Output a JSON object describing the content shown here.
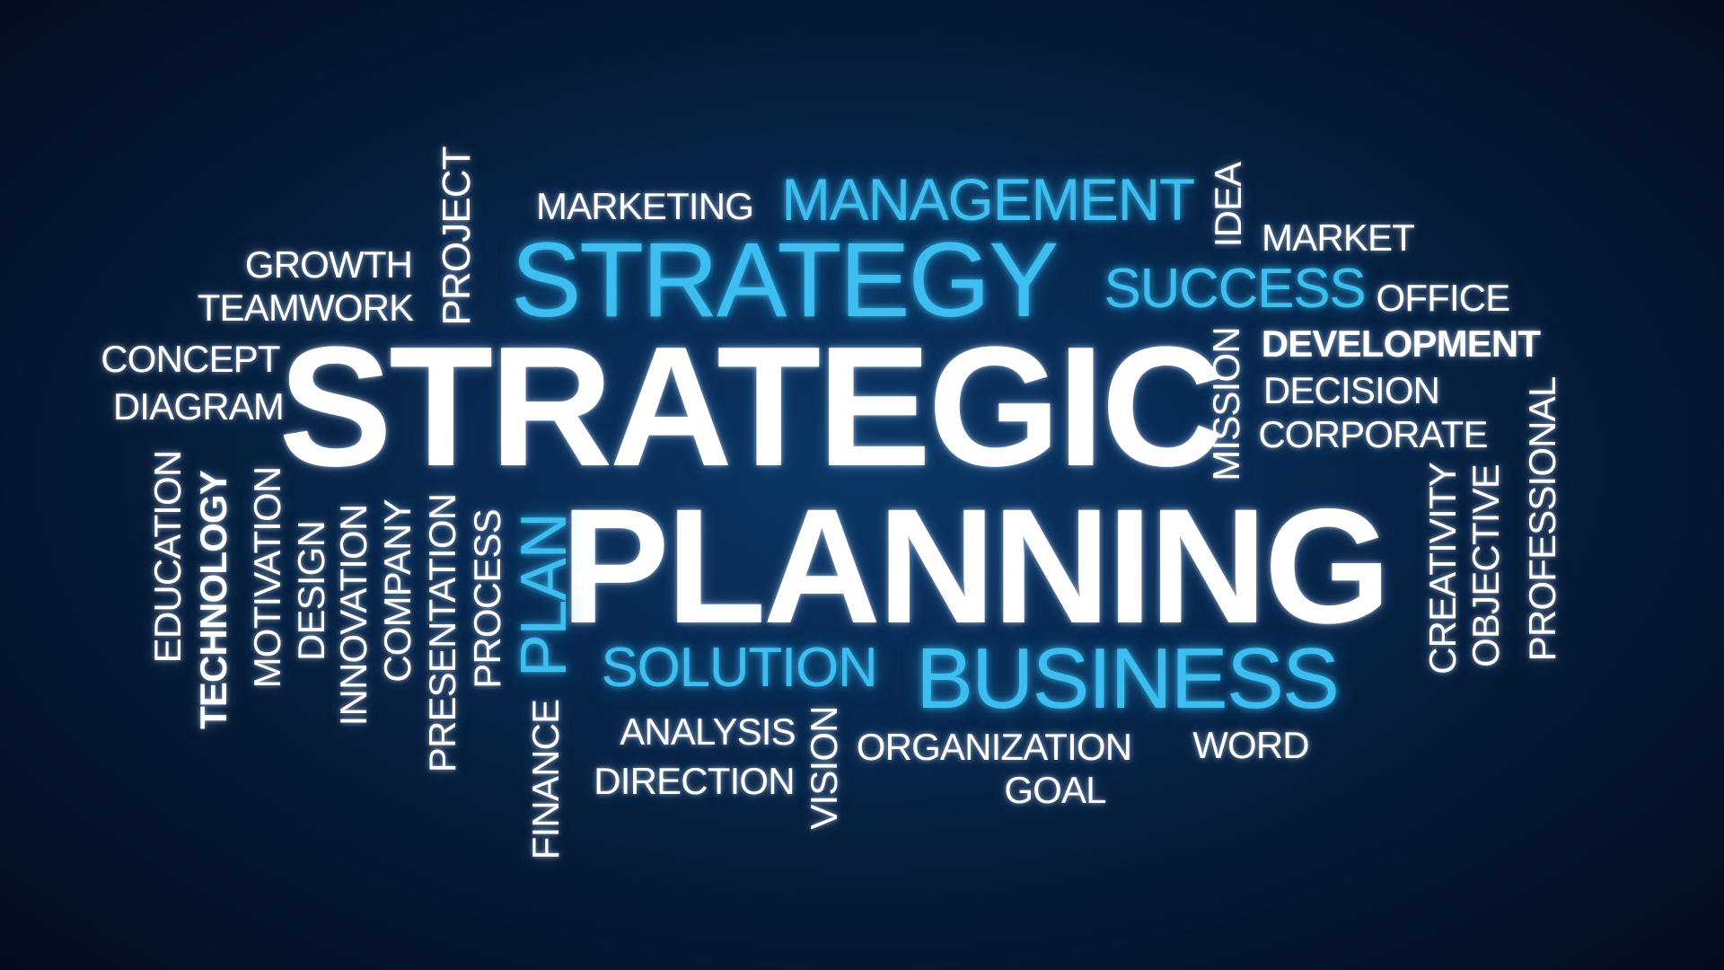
{
  "palette": {
    "background": "#071e3d",
    "white_words": "#ffffff",
    "cyan_words": "#3dbdf0"
  },
  "words": {
    "strategic": "STRATEGIC",
    "planning": "PLANNING",
    "strategy": "STRATEGY",
    "management": "MANAGEMENT",
    "marketing": "MARKETING",
    "success": "SUCCESS",
    "business": "BUSINESS",
    "solution": "SOLUTION",
    "plan": "PLAN",
    "growth": "GROWTH",
    "teamwork": "TEAMWORK",
    "concept": "CONCEPT",
    "diagram": "DIAGRAM",
    "project": "PROJECT",
    "idea": "IDEA",
    "market": "MARKET",
    "office": "OFFICE",
    "development": "DEVELOPMENT",
    "decision": "DECISION",
    "corporate": "CORPORATE",
    "mission": "MISSION",
    "professional": "PROFESSIONAL",
    "objective": "OBJECTIVE",
    "creativity": "CREATIVITY",
    "education": "EDUCATION",
    "technology": "TECHNOLOGY",
    "motivation": "MOTIVATION",
    "design": "DESIGN",
    "innovation": "INNOVATION",
    "company": "COMPANY",
    "presentation": "PRESENTATION",
    "process": "PROCESS",
    "finance": "FINANCE",
    "analysis": "ANALYSIS",
    "direction": "DIRECTION",
    "vision": "VISION",
    "organization": "ORGANIZATION",
    "goal": "GOAL",
    "word": "WORD"
  }
}
